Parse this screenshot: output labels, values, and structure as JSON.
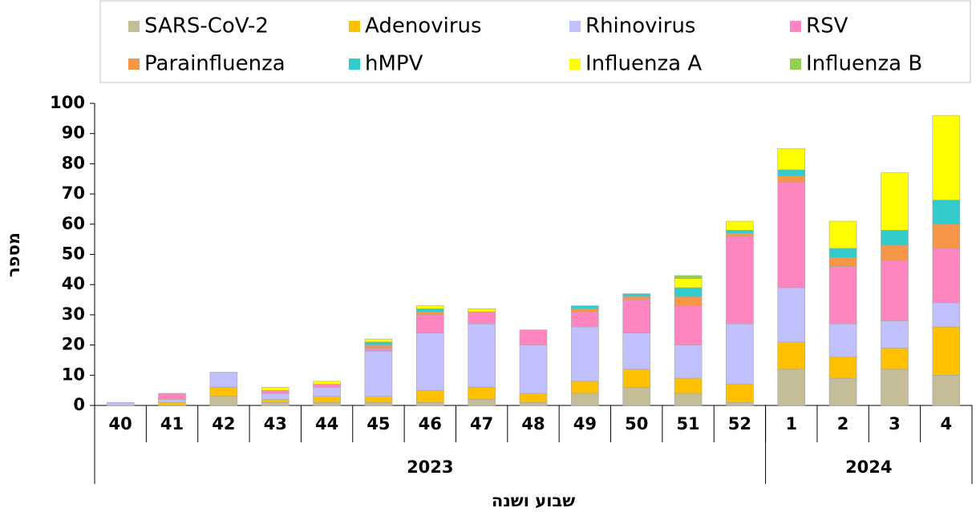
{
  "chart_data": {
    "type": "stacked_bar",
    "groups": [
      {
        "label": "2023",
        "categories": [
          "40",
          "41",
          "42",
          "43",
          "44",
          "45",
          "46",
          "47",
          "48",
          "49",
          "50",
          "51",
          "52"
        ]
      },
      {
        "label": "2024",
        "categories": [
          "1",
          "2",
          "3",
          "4"
        ]
      }
    ],
    "x_label": "שבוע ושנה",
    "y_label": "מספר",
    "ylim": [
      0,
      100
    ],
    "yticks": [
      0,
      10,
      20,
      30,
      40,
      50,
      60,
      70,
      80,
      90,
      100
    ],
    "grid": false,
    "series": [
      {
        "name": "SARS-CoV-2",
        "color": "#c4bd97",
        "values": [
          0,
          0,
          3,
          1,
          1,
          1,
          1,
          2,
          1,
          4,
          6,
          4,
          1,
          12,
          9,
          12,
          10
        ]
      },
      {
        "name": "Adenovirus",
        "color": "#ffc000",
        "values": [
          0,
          1,
          3,
          1,
          2,
          2,
          4,
          4,
          3,
          4,
          6,
          5,
          6,
          9,
          7,
          7,
          16
        ]
      },
      {
        "name": "Rhinovirus",
        "color": "#c0c0ff",
        "values": [
          1,
          1,
          5,
          2,
          3,
          15,
          19,
          21,
          16,
          18,
          12,
          11,
          20,
          18,
          11,
          9,
          8
        ]
      },
      {
        "name": "RSV",
        "color": "#ff85c0",
        "values": [
          0,
          2,
          0,
          1,
          1,
          1,
          6,
          4,
          5,
          5,
          11,
          13,
          29,
          35,
          19,
          20,
          18
        ]
      },
      {
        "name": "Parainfluenza",
        "color": "#f79646",
        "values": [
          0,
          0,
          0,
          0,
          0,
          1,
          1,
          0,
          0,
          1,
          1,
          3,
          1,
          2,
          3,
          5,
          8
        ]
      },
      {
        "name": "hMPV",
        "color": "#33cccc",
        "values": [
          0,
          0,
          0,
          0,
          0,
          1,
          1,
          0,
          0,
          1,
          1,
          3,
          1,
          2,
          3,
          5,
          8
        ]
      },
      {
        "name": "Influenza A",
        "color": "#ffff00",
        "values": [
          0,
          0,
          0,
          1,
          1,
          1,
          1,
          1,
          0,
          0,
          0,
          3,
          3,
          7,
          9,
          19,
          28
        ]
      },
      {
        "name": "Influenza B",
        "color": "#92d050",
        "values": [
          0,
          0,
          0,
          0,
          0,
          0,
          0,
          0,
          0,
          0,
          0,
          1,
          0,
          0,
          0,
          0,
          0
        ]
      }
    ]
  }
}
